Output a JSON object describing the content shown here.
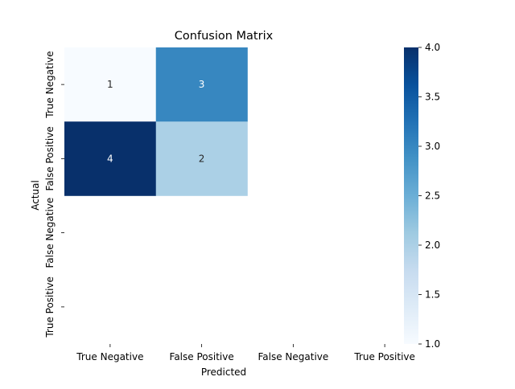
{
  "chart_data": {
    "type": "heatmap",
    "title": "Confusion Matrix",
    "xlabel": "Predicted",
    "ylabel": "Actual",
    "x_categories": [
      "True Negative",
      "False Positive",
      "False Negative",
      "True Positive"
    ],
    "y_categories": [
      "True Negative",
      "False Positive",
      "False Negative",
      "True Positive"
    ],
    "cells": [
      {
        "row": 0,
        "col": 0,
        "value": 1,
        "label": "1"
      },
      {
        "row": 0,
        "col": 1,
        "value": 3,
        "label": "3"
      },
      {
        "row": 1,
        "col": 0,
        "value": 4,
        "label": "4"
      },
      {
        "row": 1,
        "col": 1,
        "value": 2,
        "label": "2"
      }
    ],
    "colormap": "Blues",
    "colors": {
      "low": "#f7fbff",
      "high": "#08306b"
    },
    "colorbar": {
      "range": [
        1.0,
        4.0
      ],
      "ticks": [
        "1.0",
        "1.5",
        "2.0",
        "2.5",
        "3.0",
        "3.5",
        "4.0"
      ]
    },
    "grid": false
  }
}
